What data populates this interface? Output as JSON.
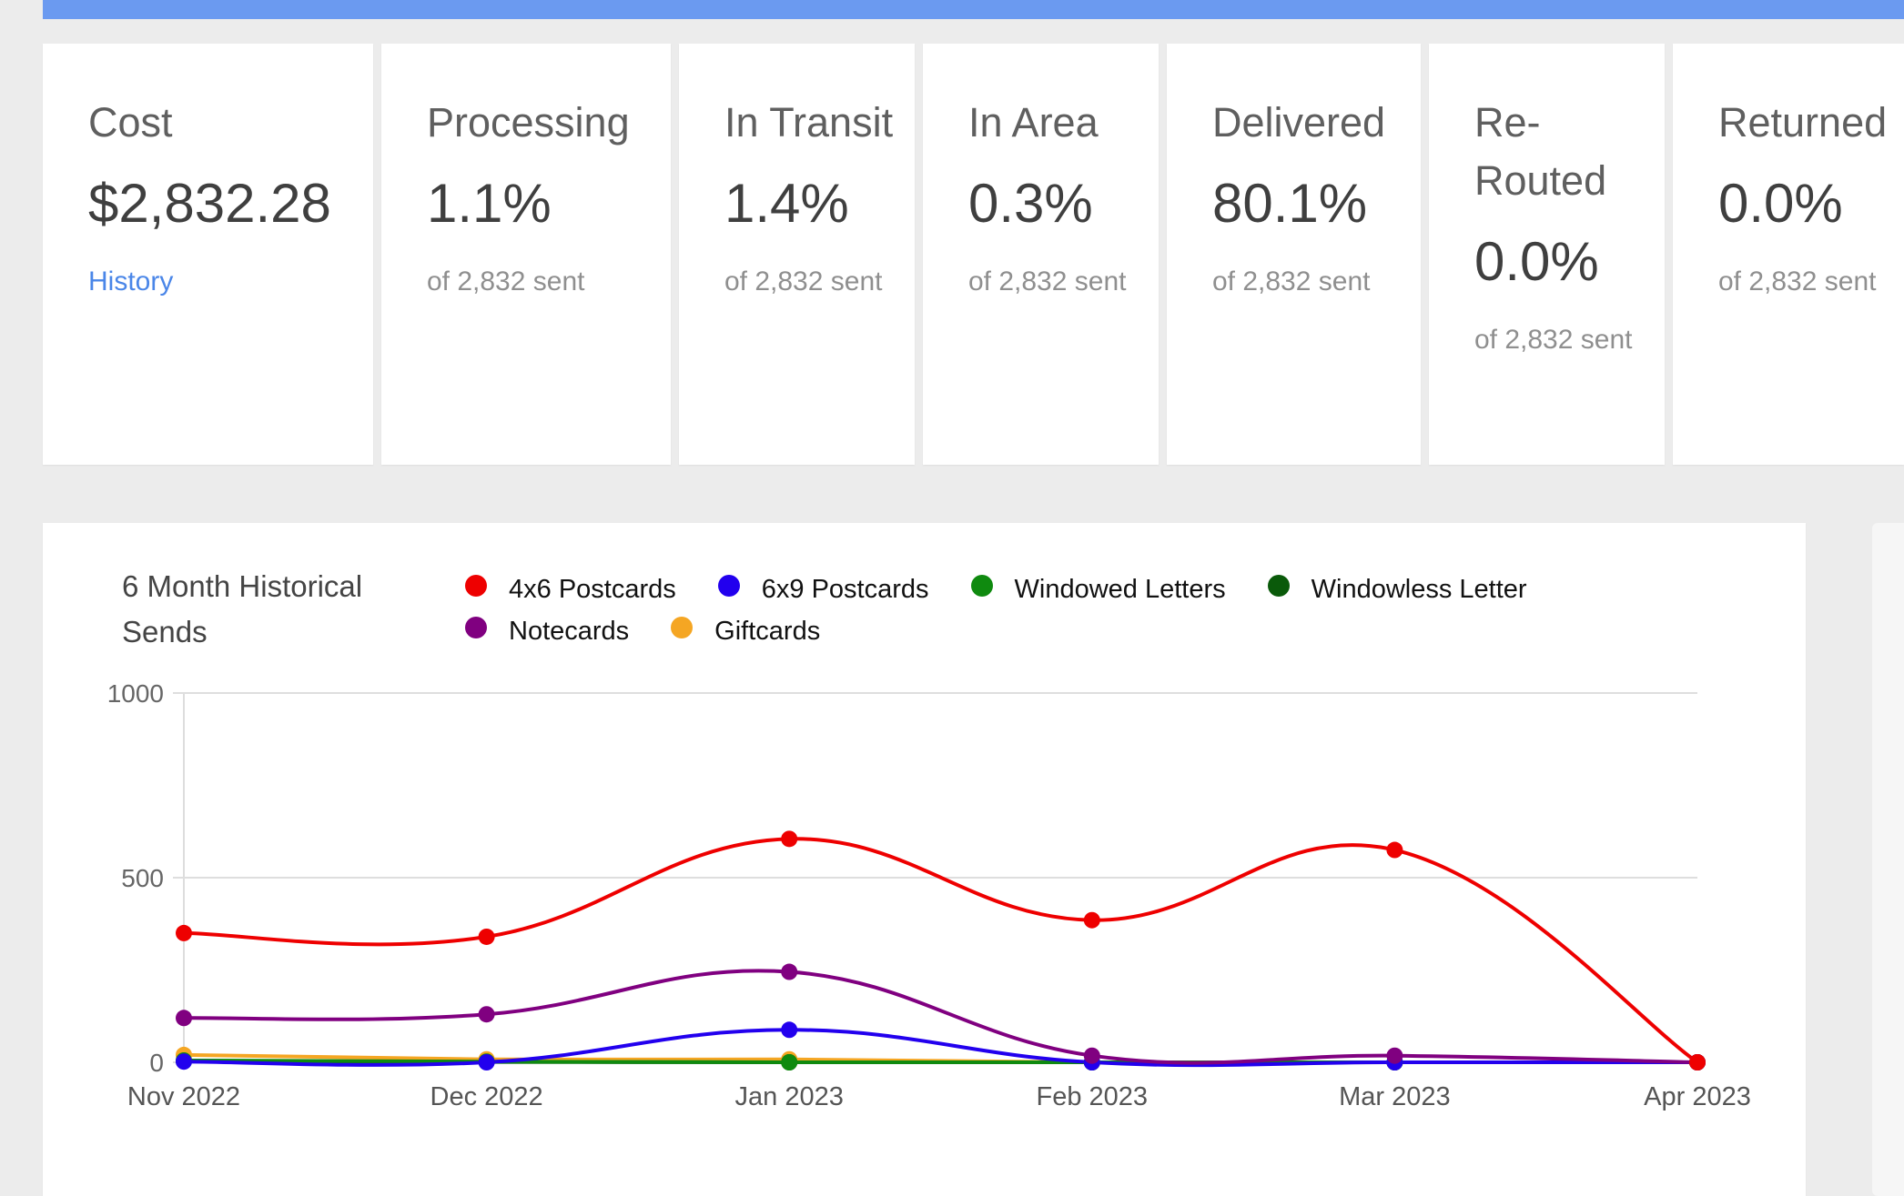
{
  "cards": {
    "cost": {
      "label": "Cost",
      "value": "$2,832.28",
      "link": "History"
    },
    "processing": {
      "label": "Processing",
      "value": "1.1%",
      "sub": "of 2,832 sent"
    },
    "in_transit": {
      "label": "In Transit",
      "value": "1.4%",
      "sub": "of 2,832 sent"
    },
    "in_area": {
      "label": "In Area",
      "value": "0.3%",
      "sub": "of 2,832 sent"
    },
    "delivered": {
      "label": "Delivered",
      "value": "80.1%",
      "sub": "of 2,832 sent"
    },
    "rerouted": {
      "label": "Re-Routed",
      "value": "0.0%",
      "sub": "of 2,832 sent"
    },
    "returned": {
      "label": "Returned",
      "value": "0.0%",
      "sub": "of 2,832 sent"
    }
  },
  "chart_data": {
    "type": "line",
    "title": "6 Month Historical Sends",
    "categories": [
      "Nov 2022",
      "Dec 2022",
      "Jan 2023",
      "Feb 2023",
      "Mar 2023",
      "Apr 2023"
    ],
    "ylim": [
      0,
      1000
    ],
    "yticks": [
      0,
      500,
      1000
    ],
    "grid": true,
    "legend_position": "top",
    "series": [
      {
        "name": "4x6 Postcards",
        "color": "#ee0000",
        "values": [
          350,
          340,
          605,
          385,
          575,
          0
        ]
      },
      {
        "name": "6x9 Postcards",
        "color": "#2200ee",
        "values": [
          2,
          0,
          88,
          0,
          0,
          0
        ]
      },
      {
        "name": "Windowed Letters",
        "color": "#0f8a0f",
        "values": [
          5,
          2,
          0,
          0,
          0,
          0
        ]
      },
      {
        "name": "Windowless Letter",
        "color": "#0a5a0a",
        "values": [
          3,
          1,
          0,
          0,
          0,
          0
        ]
      },
      {
        "name": "Notecards",
        "color": "#800080",
        "values": [
          120,
          130,
          245,
          18,
          18,
          0
        ]
      },
      {
        "name": "Giftcards",
        "color": "#f5a623",
        "values": [
          20,
          8,
          8,
          0,
          0,
          0
        ]
      }
    ]
  }
}
